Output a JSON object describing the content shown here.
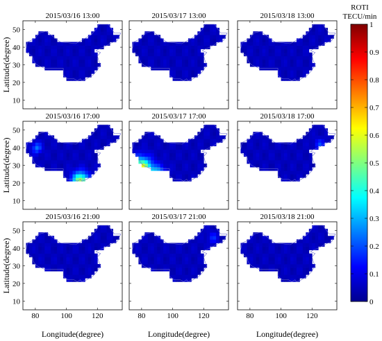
{
  "chart_data": {
    "type": "heatmap",
    "panel_titles": [
      "2015/03/16 13:00",
      "2015/03/17 13:00",
      "2015/03/18 13:00",
      "2015/03/16 17:00",
      "2015/03/17 17:00",
      "2015/03/18 17:00",
      "2015/03/16 21:00",
      "2015/03/17 21:00",
      "2015/03/18 21:00"
    ],
    "xlabel": "Longitude(degree)",
    "ylabel": "Latitude(degree)",
    "x_ticks": [
      "80",
      "100",
      "120"
    ],
    "y_ticks": [
      "10",
      "20",
      "30",
      "40",
      "50"
    ],
    "xlim": [
      72,
      136
    ],
    "ylim": [
      5,
      55
    ],
    "colorbar": {
      "title_line1": "ROTI",
      "title_line2": "TECU/min",
      "ticks": [
        "0",
        "0.1",
        "0.2",
        "0.3",
        "0.4",
        "0.5",
        "0.6",
        "0.7",
        "0.8",
        "0.9",
        "1"
      ],
      "range": [
        0,
        1
      ],
      "colormap": "jet"
    },
    "background_roti": 0.06,
    "hotspots": [
      [],
      [
        {
          "lon": 77,
          "lat": 24,
          "r": 3,
          "v": 0.1
        }
      ],
      [],
      [
        {
          "lon": 109,
          "lat": 21,
          "r": 5,
          "v": 0.5
        },
        {
          "lon": 81,
          "lat": 40,
          "r": 3,
          "v": 0.18
        }
      ],
      [
        {
          "lon": 80,
          "lat": 28,
          "r": 6,
          "v": 0.6
        },
        {
          "lon": 90,
          "lat": 24,
          "r": 5,
          "v": 0.35
        }
      ],
      [
        {
          "lon": 125,
          "lat": 42,
          "r": 3,
          "v": 0.12
        }
      ],
      [],
      [
        {
          "lon": 126,
          "lat": 46,
          "r": 3,
          "v": 0.1
        }
      ],
      []
    ]
  }
}
